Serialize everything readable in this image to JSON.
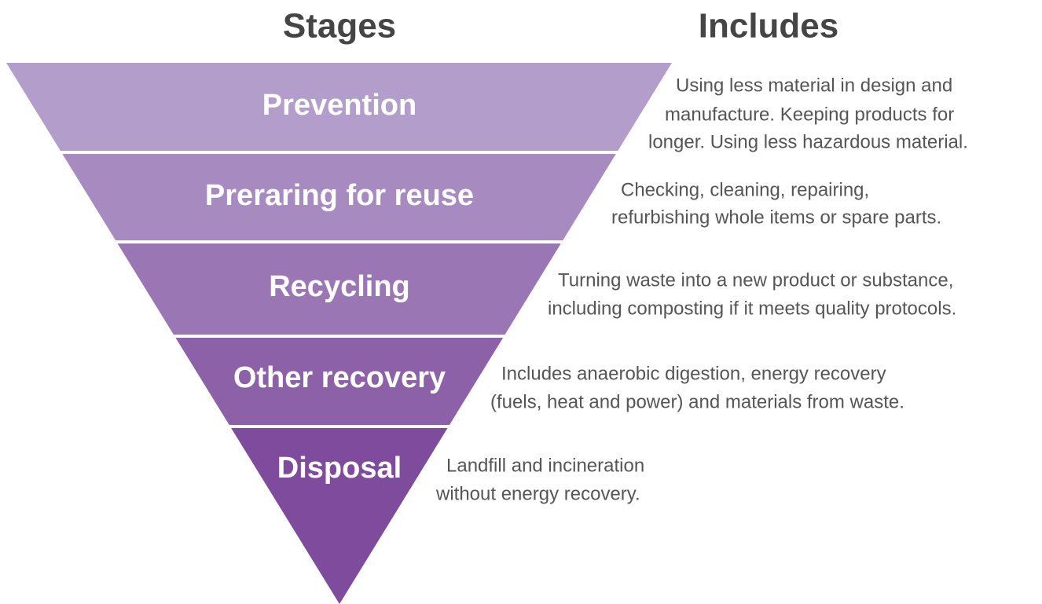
{
  "header": {
    "stages": "Stages",
    "includes": "Includes"
  },
  "stages": [
    {
      "label": "Prevention",
      "description": [
        "Using less material in design and",
        "manufacture. Keeping products for",
        "longer. Using less hazardous material."
      ]
    },
    {
      "label": "Preraring for reuse",
      "description": [
        "Checking, cleaning, repairing,",
        "refurbishing whole items or spare parts."
      ]
    },
    {
      "label": "Recycling",
      "description": [
        "Turning waste into a new product or substance,",
        "including composting if it meets quality protocols."
      ]
    },
    {
      "label": "Other recovery",
      "description": [
        "Includes anaerobic digestion, energy recovery",
        "(fuels, heat and power) and materials from waste."
      ]
    },
    {
      "label": "Disposal",
      "description": [
        "Landfill and incineration",
        "without energy recovery."
      ]
    }
  ]
}
